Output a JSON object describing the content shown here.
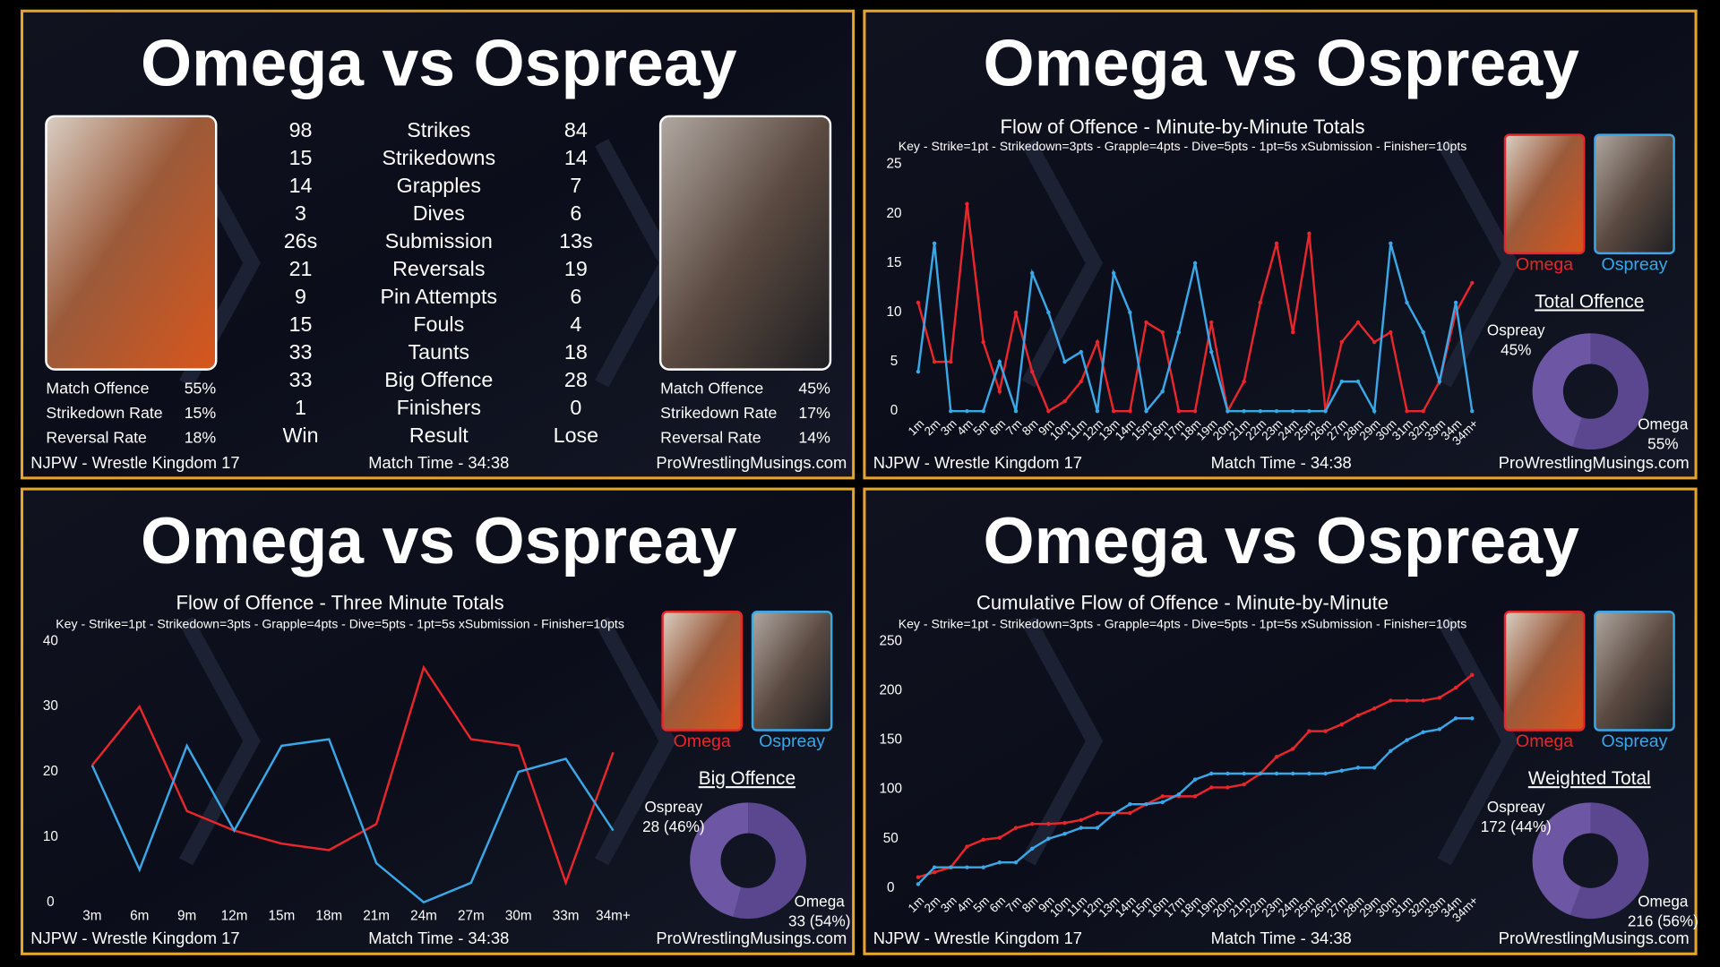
{
  "panels": [
    {
      "title": "Omega vs Ospreay",
      "table": {
        "rows": [
          [
            "98",
            "Strikes",
            "84"
          ],
          [
            "15",
            "Strikedowns",
            "14"
          ],
          [
            "14",
            "Grapples",
            "7"
          ],
          [
            "3",
            "Dives",
            "6"
          ],
          [
            "26s",
            "Submission",
            "13s"
          ],
          [
            "21",
            "Reversals",
            "19"
          ],
          [
            "9",
            "Pin Attempts",
            "6"
          ],
          [
            "15",
            "Fouls",
            "4"
          ],
          [
            "33",
            "Taunts",
            "18"
          ],
          [
            "33",
            "Big Offence",
            "28"
          ],
          [
            "1",
            "Finishers",
            "0"
          ],
          [
            "Win",
            "Result",
            "Lose"
          ]
        ]
      },
      "left_stats": [
        [
          "Match Offence",
          "55%"
        ],
        [
          "Strikedown Rate",
          "15%"
        ],
        [
          "Reversal Rate",
          "18%"
        ]
      ],
      "right_stats": [
        [
          "Match Offence",
          "45%"
        ],
        [
          "Strikedown Rate",
          "17%"
        ],
        [
          "Reversal Rate",
          "14%"
        ]
      ],
      "footer": [
        "NJPW - Wrestle Kingdom 17",
        "Match Time - 34:38",
        "ProWrestlingMusings.com"
      ]
    },
    {
      "title": "Omega vs Ospreay",
      "footer": [
        "NJPW - Wrestle Kingdom 17",
        "Match Time - 34:38",
        "ProWrestlingMusings.com"
      ]
    },
    {
      "title": "Omega vs Ospreay",
      "footer": [
        "NJPW - Wrestle Kingdom 17",
        "Match Time - 34:38",
        "ProWrestlingMusings.com"
      ]
    },
    {
      "title": "Omega vs Ospreay",
      "footer": [
        "NJPW - Wrestle Kingdom 17",
        "Match Time - 34:38",
        "ProWrestlingMusings.com"
      ]
    }
  ],
  "chart_data": [
    {
      "type": "line",
      "title": "Flow of Offence - Minute-by-Minute Totals",
      "subtitle": "Key - Strike=1pt - Strikedown=3pts - Grapple=4pts - Dive=5pts - 1pt=5s xSubmission - Finisher=10pts",
      "categories": [
        "1m",
        "2m",
        "3m",
        "4m",
        "5m",
        "6m",
        "7m",
        "8m",
        "9m",
        "10m",
        "11m",
        "12m",
        "13m",
        "14m",
        "15m",
        "16m",
        "17m",
        "18m",
        "19m",
        "20m",
        "21m",
        "22m",
        "23m",
        "24m",
        "25m",
        "26m",
        "27m",
        "28m",
        "29m",
        "30m",
        "31m",
        "32m",
        "33m",
        "34m",
        "34m+"
      ],
      "series": [
        {
          "name": "Omega",
          "color": "#e8262b",
          "values": [
            11,
            5,
            5,
            21,
            7,
            2,
            10,
            4,
            0,
            1,
            3,
            7,
            0,
            0,
            9,
            8,
            0,
            0,
            9,
            0,
            3,
            11,
            17,
            8,
            18,
            0,
            7,
            9,
            7,
            8,
            0,
            0,
            3,
            10,
            13
          ]
        },
        {
          "name": "Ospreay",
          "color": "#3aa8e8",
          "values": [
            4,
            17,
            0,
            0,
            0,
            5,
            0,
            14,
            10,
            5,
            6,
            0,
            14,
            10,
            0,
            2,
            8,
            15,
            6,
            0,
            0,
            0,
            0,
            0,
            0,
            0,
            3,
            3,
            0,
            17,
            11,
            8,
            3,
            11,
            0
          ]
        }
      ],
      "ylim": [
        0,
        25
      ],
      "yticks": [
        0,
        5,
        10,
        15,
        20,
        25
      ],
      "grid": false,
      "markers": true
    },
    {
      "type": "pie",
      "donut": true,
      "title": "Total Offence",
      "categories": [
        "Omega",
        "Ospreay"
      ],
      "values": [
        55,
        45
      ],
      "value_labels": [
        "55%",
        "45%"
      ],
      "colors": [
        "#5b4790",
        "#6d57a5"
      ]
    },
    {
      "type": "line",
      "title": "Flow of Offence - Three Minute Totals",
      "subtitle": "Key - Strike=1pt - Strikedown=3pts - Grapple=4pts - Dive=5pts - 1pt=5s xSubmission - Finisher=10pts",
      "categories": [
        "3m",
        "6m",
        "9m",
        "12m",
        "15m",
        "18m",
        "21m",
        "24m",
        "27m",
        "30m",
        "33m",
        "34m+"
      ],
      "series": [
        {
          "name": "Omega",
          "color": "#e8262b",
          "values": [
            21,
            30,
            14,
            11,
            9,
            8,
            12,
            36,
            25,
            24,
            3,
            23
          ]
        },
        {
          "name": "Ospreay",
          "color": "#3aa8e8",
          "values": [
            21,
            5,
            24,
            11,
            24,
            25,
            6,
            0,
            3,
            20,
            22,
            11
          ]
        }
      ],
      "ylim": [
        0,
        40
      ],
      "yticks": [
        0,
        10,
        20,
        30,
        40
      ],
      "grid": false,
      "markers": false
    },
    {
      "type": "pie",
      "donut": true,
      "title": "Big Offence",
      "categories": [
        "Omega",
        "Ospreay"
      ],
      "values": [
        33,
        28
      ],
      "value_labels": [
        "33 (54%)",
        "28 (46%)"
      ],
      "colors": [
        "#5b4790",
        "#6d57a5"
      ]
    },
    {
      "type": "line",
      "title": "Cumulative Flow of Offence - Minute-by-Minute",
      "subtitle": "Key - Strike=1pt - Strikedown=3pts - Grapple=4pts - Dive=5pts - 1pt=5s xSubmission - Finisher=10pts",
      "categories": [
        "1m",
        "2m",
        "3m",
        "4m",
        "5m",
        "6m",
        "7m",
        "8m",
        "9m",
        "10m",
        "11m",
        "12m",
        "13m",
        "14m",
        "15m",
        "16m",
        "17m",
        "18m",
        "19m",
        "20m",
        "21m",
        "22m",
        "23m",
        "24m",
        "25m",
        "26m",
        "27m",
        "28m",
        "29m",
        "30m",
        "31m",
        "32m",
        "33m",
        "34m",
        "34m+"
      ],
      "series": [
        {
          "name": "Omega",
          "color": "#e8262b",
          "values": [
            11,
            16,
            21,
            42,
            49,
            51,
            61,
            65,
            65,
            66,
            69,
            76,
            76,
            76,
            85,
            93,
            93,
            93,
            102,
            102,
            105,
            116,
            133,
            141,
            159,
            159,
            166,
            175,
            182,
            190,
            190,
            190,
            193,
            203,
            216
          ]
        },
        {
          "name": "Ospreay",
          "color": "#3aa8e8",
          "values": [
            4,
            21,
            21,
            21,
            21,
            26,
            26,
            40,
            50,
            55,
            61,
            61,
            75,
            85,
            85,
            87,
            95,
            110,
            116,
            116,
            116,
            116,
            116,
            116,
            116,
            116,
            119,
            122,
            122,
            139,
            150,
            158,
            161,
            172,
            172
          ]
        }
      ],
      "ylim": [
        0,
        250
      ],
      "yticks": [
        0,
        50,
        100,
        150,
        200,
        250
      ],
      "grid": false,
      "markers": true
    },
    {
      "type": "pie",
      "donut": true,
      "title": "Weighted Total",
      "categories": [
        "Omega",
        "Ospreay"
      ],
      "values": [
        216,
        172
      ],
      "value_labels": [
        "216 (56%)",
        "172 (44%)"
      ],
      "colors": [
        "#5b4790",
        "#6d57a5"
      ]
    }
  ]
}
